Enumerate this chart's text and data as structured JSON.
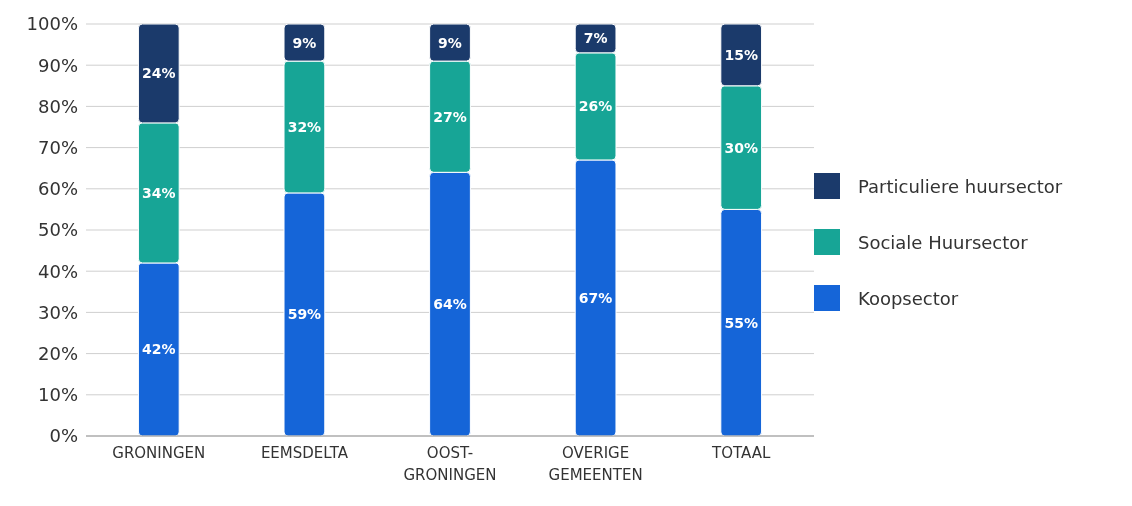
{
  "chart_data": {
    "type": "bar",
    "stacked": true,
    "categories": [
      "GRONINGEN",
      "EEMSDELTA",
      "OOST-\nGRONINGEN",
      "OVERIGE\nGEMEENTEN",
      "TOTAAL"
    ],
    "series": [
      {
        "name": "Koopsector",
        "color": "#1565d8",
        "values": [
          42,
          59,
          64,
          67,
          55
        ],
        "value_labels": [
          "42%",
          "59%",
          "64%",
          "67%",
          "55%"
        ]
      },
      {
        "name": "Sociale Huursector",
        "color": "#17a596",
        "values": [
          34,
          32,
          27,
          26,
          30
        ],
        "value_labels": [
          "34%",
          "32%",
          "27%",
          "26%",
          "30%"
        ]
      },
      {
        "name": "Particuliere huursector",
        "color": "#1b3a6b",
        "values": [
          24,
          9,
          9,
          7,
          15
        ],
        "value_labels": [
          "24%",
          "9%",
          "9%",
          "7%",
          "15%"
        ]
      }
    ],
    "ylim": [
      0,
      100
    ],
    "yticks": [
      {
        "value": 0,
        "label": "0%"
      },
      {
        "value": 10,
        "label": "10%"
      },
      {
        "value": 20,
        "label": "20%"
      },
      {
        "value": 30,
        "label": "30%"
      },
      {
        "value": 40,
        "label": "40%"
      },
      {
        "value": 50,
        "label": "50%"
      },
      {
        "value": 60,
        "label": "60%"
      },
      {
        "value": 70,
        "label": "70%"
      },
      {
        "value": 80,
        "label": "80%"
      },
      {
        "value": 90,
        "label": "90%"
      },
      {
        "value": 100,
        "label": "100%"
      }
    ],
    "grid": "y",
    "legend": "right"
  }
}
